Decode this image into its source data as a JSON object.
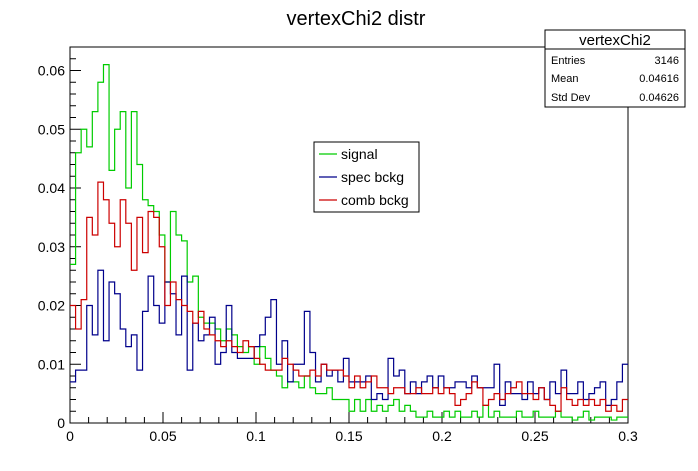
{
  "chart_data": {
    "type": "step-histogram",
    "title": "vertexChi2 distr",
    "xlabel": "",
    "ylabel": "",
    "xlim": [
      0,
      0.3
    ],
    "ylim": [
      0,
      0.064
    ],
    "bins": 100,
    "x_ticks": [
      "0",
      "0.05",
      "0.1",
      "0.15",
      "0.2",
      "0.25",
      "0.3"
    ],
    "y_ticks": [
      "0",
      "0.01",
      "0.02",
      "0.03",
      "0.04",
      "0.05",
      "0.06"
    ],
    "stats_box": {
      "title": "vertexChi2",
      "rows": [
        {
          "label": "Entries",
          "value": "3146"
        },
        {
          "label": "Mean",
          "value": "0.04616"
        },
        {
          "label": "Std Dev",
          "value": "0.04626"
        }
      ]
    },
    "legend_position": "upper-middle",
    "series": [
      {
        "name": "signal",
        "color": "#00cc00",
        "values": [
          0.027,
          0.046,
          0.05,
          0.047,
          0.053,
          0.058,
          0.061,
          0.043,
          0.05,
          0.053,
          0.04,
          0.053,
          0.044,
          0.038,
          0.037,
          0.036,
          0.032,
          0.024,
          0.036,
          0.032,
          0.031,
          0.024,
          0.025,
          0.018,
          0.017,
          0.017,
          0.016,
          0.014,
          0.016,
          0.015,
          0.013,
          0.012,
          0.013,
          0.01,
          0.013,
          0.011,
          0.009,
          0.008,
          0.006,
          0.007,
          0.007,
          0.006,
          0.008,
          0.006,
          0.005,
          0.005,
          0.006,
          0.004,
          0.004,
          0.004,
          0.002,
          0.004,
          0.002,
          0.004,
          0.002,
          0.003,
          0.002,
          0.003,
          0.004,
          0.002,
          0.003,
          0.002,
          0.001,
          0.001,
          0.002,
          0.001,
          0.001,
          0.002,
          0.001,
          0.002,
          0.001,
          0.001,
          0.002,
          0.001,
          0.003,
          0.001,
          0.002,
          0.001,
          0.001,
          0.001,
          0.002,
          0.001,
          0.001,
          0.002,
          0.001,
          0.001,
          0.001,
          0.002,
          0.001,
          0.001,
          0.0005,
          0.001,
          0.002,
          0.0005,
          0.001,
          0.001,
          0.001,
          0.0005,
          0.001,
          0.001
        ]
      },
      {
        "name": "spec bckg",
        "color": "#00008b",
        "values": [
          0.007,
          0.009,
          0.009,
          0.02,
          0.015,
          0.026,
          0.014,
          0.024,
          0.022,
          0.016,
          0.013,
          0.015,
          0.009,
          0.019,
          0.025,
          0.02,
          0.017,
          0.024,
          0.022,
          0.015,
          0.025,
          0.009,
          0.017,
          0.014,
          0.015,
          0.018,
          0.01,
          0.012,
          0.02,
          0.012,
          0.011,
          0.011,
          0.011,
          0.013,
          0.015,
          0.018,
          0.021,
          0.01,
          0.014,
          0.007,
          0.01,
          0.01,
          0.019,
          0.012,
          0.007,
          0.01,
          0.008,
          0.009,
          0.007,
          0.011,
          0.007,
          0.007,
          0.007,
          0.008,
          0.004,
          0.005,
          0.004,
          0.011,
          0.008,
          0.009,
          0.005,
          0.007,
          0.005,
          0.007,
          0.008,
          0.006,
          0.008,
          0.006,
          0.006,
          0.007,
          0.007,
          0.006,
          0.008,
          0.006,
          0.006,
          0.006,
          0.01,
          0.003,
          0.007,
          0.005,
          0.005,
          0.004,
          0.007,
          0.005,
          0.006,
          0.004,
          0.007,
          0.005,
          0.009,
          0.005,
          0.005,
          0.007,
          0.004,
          0.005,
          0.006,
          0.007,
          0.003,
          0.004,
          0.007,
          0.01
        ]
      },
      {
        "name": "comb bckg",
        "color": "#cc0000",
        "values": [
          0.02,
          0.016,
          0.021,
          0.035,
          0.032,
          0.041,
          0.038,
          0.034,
          0.03,
          0.038,
          0.034,
          0.026,
          0.035,
          0.029,
          0.036,
          0.035,
          0.03,
          0.02,
          0.024,
          0.021,
          0.02,
          0.019,
          0.017,
          0.019,
          0.016,
          0.015,
          0.014,
          0.013,
          0.014,
          0.013,
          0.012,
          0.014,
          0.013,
          0.011,
          0.01,
          0.009,
          0.009,
          0.009,
          0.011,
          0.01,
          0.009,
          0.008,
          0.008,
          0.009,
          0.008,
          0.01,
          0.009,
          0.009,
          0.009,
          0.008,
          0.006,
          0.008,
          0.006,
          0.007,
          0.008,
          0.006,
          0.006,
          0.005,
          0.006,
          0.006,
          0.005,
          0.005,
          0.006,
          0.005,
          0.005,
          0.006,
          0.005,
          0.006,
          0.005,
          0.003,
          0.004,
          0.005,
          0.007,
          0.006,
          0.003,
          0.004,
          0.005,
          0.004,
          0.005,
          0.006,
          0.007,
          0.005,
          0.005,
          0.004,
          0.006,
          0.004,
          0.003,
          0.002,
          0.006,
          0.004,
          0.003,
          0.004,
          0.003,
          0.004,
          0.003,
          0.004,
          0.002,
          0.003,
          0.002,
          0.004
        ]
      }
    ]
  }
}
